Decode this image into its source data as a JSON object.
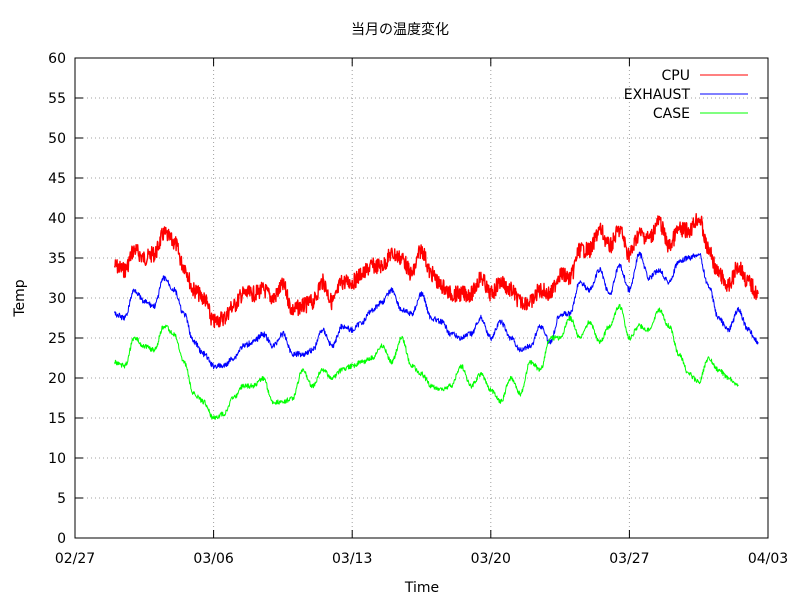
{
  "chart_data": {
    "type": "line",
    "title": "当月の温度変化",
    "xlabel": "Time",
    "ylabel": "Temp",
    "ylim": [
      0,
      60
    ],
    "yticks": [
      0,
      5,
      10,
      15,
      20,
      25,
      30,
      35,
      40,
      45,
      50,
      55,
      60
    ],
    "xlim": [
      "02/27",
      "04/03"
    ],
    "xticks": [
      "02/27",
      "03/06",
      "03/13",
      "03/20",
      "03/27",
      "04/03"
    ],
    "grid": true,
    "legend_position": "top-right",
    "series": [
      {
        "name": "CPU",
        "color": "#ff0000",
        "noise": 1.0,
        "points": [
          [
            "03/01 00:00",
            34
          ],
          [
            "03/01 12:00",
            33.5
          ],
          [
            "03/02 00:00",
            36
          ],
          [
            "03/02 12:00",
            35
          ],
          [
            "03/03 00:00",
            35.5
          ],
          [
            "03/03 12:00",
            38
          ],
          [
            "03/04 00:00",
            37
          ],
          [
            "03/04 12:00",
            34
          ],
          [
            "03/05 00:00",
            31
          ],
          [
            "03/05 12:00",
            30
          ],
          [
            "03/06 00:00",
            27
          ],
          [
            "03/06 12:00",
            27.5
          ],
          [
            "03/07 00:00",
            29
          ],
          [
            "03/07 12:00",
            30.5
          ],
          [
            "03/08 00:00",
            30.5
          ],
          [
            "03/08 12:00",
            31
          ],
          [
            "03/09 00:00",
            30
          ],
          [
            "03/09 12:00",
            31.5
          ],
          [
            "03/10 00:00",
            28.5
          ],
          [
            "03/10 12:00",
            29
          ],
          [
            "03/11 00:00",
            29.5
          ],
          [
            "03/11 12:00",
            32
          ],
          [
            "03/12 00:00",
            29.5
          ],
          [
            "03/12 12:00",
            32
          ],
          [
            "03/13 00:00",
            32
          ],
          [
            "03/13 12:00",
            33
          ],
          [
            "03/14 00:00",
            34
          ],
          [
            "03/14 12:00",
            34
          ],
          [
            "03/15 00:00",
            35.5
          ],
          [
            "03/15 12:00",
            35
          ],
          [
            "03/16 00:00",
            33
          ],
          [
            "03/16 12:00",
            36
          ],
          [
            "03/17 00:00",
            33
          ],
          [
            "03/17 12:00",
            31.5
          ],
          [
            "03/18 00:00",
            30.5
          ],
          [
            "03/18 12:00",
            30.5
          ],
          [
            "03/19 00:00",
            30.5
          ],
          [
            "03/19 12:00",
            32.5
          ],
          [
            "03/20 00:00",
            30.5
          ],
          [
            "03/20 12:00",
            32
          ],
          [
            "03/21 00:00",
            31
          ],
          [
            "03/21 12:00",
            29.5
          ],
          [
            "03/22 00:00",
            29.5
          ],
          [
            "03/22 12:00",
            31
          ],
          [
            "03/23 00:00",
            30.5
          ],
          [
            "03/23 12:00",
            33
          ],
          [
            "03/24 00:00",
            32.5
          ],
          [
            "03/24 12:00",
            36
          ],
          [
            "03/25 00:00",
            36
          ],
          [
            "03/25 12:00",
            38.5
          ],
          [
            "03/26 00:00",
            36.5
          ],
          [
            "03/26 12:00",
            38.5
          ],
          [
            "03/27 00:00",
            35.5
          ],
          [
            "03/27 12:00",
            38
          ],
          [
            "03/28 00:00",
            37.5
          ],
          [
            "03/28 12:00",
            39.5
          ],
          [
            "03/29 00:00",
            36.5
          ],
          [
            "03/29 12:00",
            38.5
          ],
          [
            "03/30 00:00",
            38.5
          ],
          [
            "03/30 12:00",
            40
          ],
          [
            "03/31 00:00",
            36
          ],
          [
            "03/31 12:00",
            33
          ],
          [
            "04/01 00:00",
            31.5
          ],
          [
            "04/01 12:00",
            34
          ],
          [
            "04/02 00:00",
            32
          ],
          [
            "04/02 12:00",
            30.5
          ]
        ]
      },
      {
        "name": "EXHAUST",
        "color": "#0000ff",
        "noise": 0.35,
        "points": [
          [
            "03/01 00:00",
            28
          ],
          [
            "03/01 12:00",
            27.5
          ],
          [
            "03/02 00:00",
            31
          ],
          [
            "03/02 12:00",
            29.5
          ],
          [
            "03/03 00:00",
            29
          ],
          [
            "03/03 12:00",
            32.5
          ],
          [
            "03/04 00:00",
            31
          ],
          [
            "03/04 12:00",
            28
          ],
          [
            "03/05 00:00",
            24.5
          ],
          [
            "03/05 12:00",
            23
          ],
          [
            "03/06 00:00",
            21.5
          ],
          [
            "03/06 12:00",
            21.5
          ],
          [
            "03/07 00:00",
            22.5
          ],
          [
            "03/07 12:00",
            24
          ],
          [
            "03/08 00:00",
            24.5
          ],
          [
            "03/08 12:00",
            25.5
          ],
          [
            "03/09 00:00",
            24
          ],
          [
            "03/09 12:00",
            25.5
          ],
          [
            "03/10 00:00",
            23
          ],
          [
            "03/10 12:00",
            23
          ],
          [
            "03/11 00:00",
            23.5
          ],
          [
            "03/11 12:00",
            26
          ],
          [
            "03/12 00:00",
            24
          ],
          [
            "03/12 12:00",
            26.5
          ],
          [
            "03/13 00:00",
            26
          ],
          [
            "03/13 12:00",
            27
          ],
          [
            "03/14 00:00",
            28.5
          ],
          [
            "03/14 12:00",
            29.5
          ],
          [
            "03/15 00:00",
            31
          ],
          [
            "03/15 12:00",
            28.5
          ],
          [
            "03/16 00:00",
            28
          ],
          [
            "03/16 12:00",
            30.5
          ],
          [
            "03/17 00:00",
            27.5
          ],
          [
            "03/17 12:00",
            27
          ],
          [
            "03/18 00:00",
            25.5
          ],
          [
            "03/18 12:00",
            25
          ],
          [
            "03/19 00:00",
            25.5
          ],
          [
            "03/19 12:00",
            27.5
          ],
          [
            "03/20 00:00",
            25
          ],
          [
            "03/20 12:00",
            27
          ],
          [
            "03/21 00:00",
            25
          ],
          [
            "03/21 12:00",
            23.5
          ],
          [
            "03/22 00:00",
            24
          ],
          [
            "03/22 12:00",
            26.5
          ],
          [
            "03/23 00:00",
            24.5
          ],
          [
            "03/23 12:00",
            28
          ],
          [
            "03/24 00:00",
            28
          ],
          [
            "03/24 12:00",
            32
          ],
          [
            "03/25 00:00",
            31
          ],
          [
            "03/25 12:00",
            33.5
          ],
          [
            "03/26 00:00",
            30.5
          ],
          [
            "03/26 12:00",
            34
          ],
          [
            "03/27 00:00",
            31
          ],
          [
            "03/27 12:00",
            35.5
          ],
          [
            "03/28 00:00",
            32.5
          ],
          [
            "03/28 12:00",
            33.5
          ],
          [
            "03/29 00:00",
            32
          ],
          [
            "03/29 12:00",
            34.5
          ],
          [
            "03/30 00:00",
            35
          ],
          [
            "03/30 12:00",
            35.5
          ],
          [
            "03/31 00:00",
            31.5
          ],
          [
            "03/31 12:00",
            27.5
          ],
          [
            "04/01 00:00",
            26
          ],
          [
            "04/01 12:00",
            28.5
          ],
          [
            "04/02 00:00",
            26
          ],
          [
            "04/02 12:00",
            24.5
          ]
        ]
      },
      {
        "name": "CASE",
        "color": "#00ff00",
        "noise": 0.3,
        "points": [
          [
            "03/01 00:00",
            22
          ],
          [
            "03/01 12:00",
            21.5
          ],
          [
            "03/02 00:00",
            25
          ],
          [
            "03/02 12:00",
            24
          ],
          [
            "03/03 00:00",
            23.5
          ],
          [
            "03/03 12:00",
            26.5
          ],
          [
            "03/04 00:00",
            25.5
          ],
          [
            "03/04 12:00",
            22
          ],
          [
            "03/05 00:00",
            18
          ],
          [
            "03/05 12:00",
            17
          ],
          [
            "03/06 00:00",
            15
          ],
          [
            "03/06 12:00",
            15.5
          ],
          [
            "03/07 00:00",
            17.5
          ],
          [
            "03/07 12:00",
            19
          ],
          [
            "03/08 00:00",
            19
          ],
          [
            "03/08 12:00",
            20
          ],
          [
            "03/09 00:00",
            17
          ],
          [
            "03/09 12:00",
            17
          ],
          [
            "03/10 00:00",
            17.5
          ],
          [
            "03/10 12:00",
            21
          ],
          [
            "03/11 00:00",
            19
          ],
          [
            "03/11 12:00",
            21
          ],
          [
            "03/12 00:00",
            20
          ],
          [
            "03/12 12:00",
            21
          ],
          [
            "03/13 00:00",
            21.5
          ],
          [
            "03/13 12:00",
            22
          ],
          [
            "03/14 00:00",
            22.5
          ],
          [
            "03/14 12:00",
            24
          ],
          [
            "03/15 00:00",
            22
          ],
          [
            "03/15 12:00",
            25
          ],
          [
            "03/16 00:00",
            21.5
          ],
          [
            "03/16 12:00",
            20.5
          ],
          [
            "03/17 00:00",
            19
          ],
          [
            "03/17 12:00",
            18.5
          ],
          [
            "03/18 00:00",
            19
          ],
          [
            "03/18 12:00",
            21.5
          ],
          [
            "03/19 00:00",
            19
          ],
          [
            "03/19 12:00",
            20.5
          ],
          [
            "03/20 00:00",
            18.5
          ],
          [
            "03/20 12:00",
            17
          ],
          [
            "03/21 00:00",
            20
          ],
          [
            "03/21 12:00",
            18
          ],
          [
            "03/22 00:00",
            22
          ],
          [
            "03/22 12:00",
            21
          ],
          [
            "03/23 00:00",
            25
          ],
          [
            "03/23 12:00",
            25
          ],
          [
            "03/24 00:00",
            27.5
          ],
          [
            "03/24 12:00",
            25
          ],
          [
            "03/25 00:00",
            27
          ],
          [
            "03/25 12:00",
            24.5
          ],
          [
            "03/26 00:00",
            26.5
          ],
          [
            "03/26 12:00",
            29
          ],
          [
            "03/27 00:00",
            25
          ],
          [
            "03/27 12:00",
            26.5
          ],
          [
            "03/28 00:00",
            26
          ],
          [
            "03/28 12:00",
            28.5
          ],
          [
            "03/29 00:00",
            26.5
          ],
          [
            "03/29 12:00",
            23
          ],
          [
            "03/30 00:00",
            20.5
          ],
          [
            "03/30 12:00",
            19.5
          ],
          [
            "03/31 00:00",
            22.5
          ],
          [
            "03/31 12:00",
            21
          ],
          [
            "04/01 00:00",
            20
          ],
          [
            "04/01 12:00",
            19
          ]
        ]
      }
    ]
  }
}
